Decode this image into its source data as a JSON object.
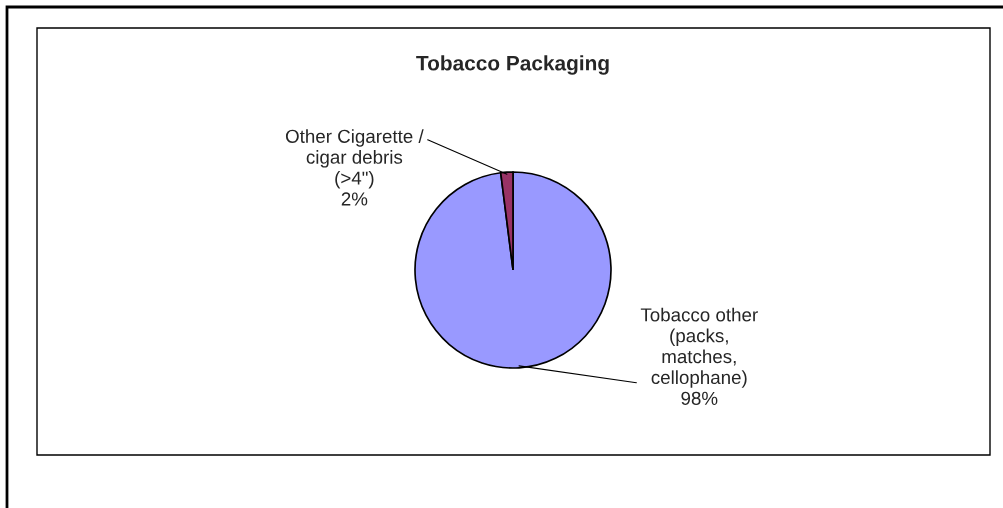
{
  "chart_data": {
    "type": "pie",
    "title": "Tobacco Packaging",
    "categories": [
      "Tobacco other\n(packs,\nmatches,\ncellophane)",
      "Other Cigarette /\ncigar debris\n(>4\")"
    ],
    "values": [
      98,
      2
    ],
    "colors": [
      "#9999ff",
      "#993366"
    ],
    "value_labels": [
      "98%",
      "2%"
    ]
  }
}
